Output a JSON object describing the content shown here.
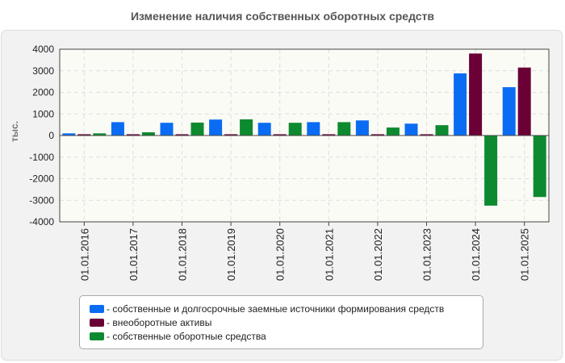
{
  "chart_data": {
    "type": "bar",
    "title": "Изменение наличия собственных оборотных средств",
    "xlabel": "",
    "ylabel": "тыс.",
    "ylim": [
      -4000,
      4000
    ],
    "yticks": [
      "4000",
      "3000",
      "2000",
      "1000",
      "0",
      "-1000",
      "-2000",
      "-3000",
      "-4000"
    ],
    "grid": true,
    "legend_position": "bottom",
    "categories": [
      "01.01.2016",
      "01.01.2017",
      "01.01.2018",
      "01.01.2019",
      "01.01.2020",
      "01.01.2021",
      "01.01.2022",
      "01.01.2023",
      "01.01.2024",
      "01.01.2025"
    ],
    "series": [
      {
        "name": "- собственные и долгосрочные заемные источники формирования средств",
        "color": "#0a6cf2",
        "values": [
          100,
          620,
          590,
          740,
          590,
          620,
          700,
          550,
          2880,
          2240
        ]
      },
      {
        "name": "- внеоборотные активы",
        "color": "#6b0036",
        "values": [
          60,
          60,
          60,
          60,
          60,
          60,
          60,
          60,
          3800,
          3150
        ]
      },
      {
        "name": "- собственные оборотные средства",
        "color": "#0d8a2f",
        "values": [
          100,
          150,
          600,
          750,
          590,
          620,
          370,
          480,
          -3250,
          -2850
        ]
      }
    ]
  }
}
